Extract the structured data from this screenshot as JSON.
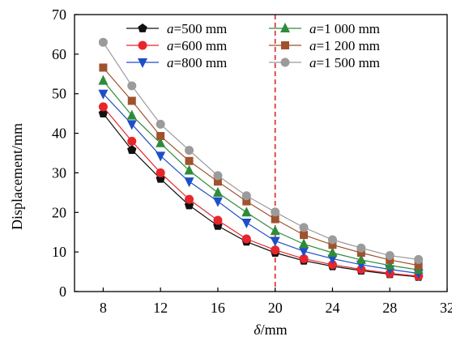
{
  "chart_data": {
    "type": "line",
    "xlabel_symbol": "δ",
    "xlabel_unit": "/mm",
    "ylabel": "Displacement/mm",
    "xlim": [
      6,
      32
    ],
    "ylim": [
      0,
      70
    ],
    "xticks": [
      8,
      12,
      16,
      20,
      24,
      28,
      32
    ],
    "yticks": [
      0,
      10,
      20,
      30,
      40,
      50,
      60,
      70
    ],
    "x": [
      8,
      10,
      12,
      14,
      16,
      18,
      20,
      22,
      24,
      26,
      28,
      30
    ],
    "reference_line_x": 20,
    "reference_line_color": "#d62728",
    "legend_position": "top-right",
    "series": [
      {
        "name": "500 mm",
        "param": "a=",
        "legend": "a=500 mm",
        "marker": "pentagon",
        "color": "#111111",
        "values": [
          45.0,
          35.8,
          28.5,
          21.8,
          16.6,
          12.6,
          9.8,
          7.8,
          6.4,
          5.3,
          4.4,
          3.7
        ]
      },
      {
        "name": "600 mm",
        "param": "a=",
        "legend": "a=600 mm",
        "marker": "circle",
        "color": "#e8252b",
        "values": [
          46.7,
          38.0,
          30.0,
          23.3,
          18.0,
          13.3,
          10.5,
          8.3,
          6.8,
          5.6,
          4.6,
          3.9
        ]
      },
      {
        "name": "800 mm",
        "param": "a=",
        "legend": "a=800 mm",
        "marker": "triangle-down",
        "color": "#1e4fc8",
        "values": [
          50.0,
          42.3,
          34.3,
          27.8,
          22.8,
          17.4,
          12.8,
          10.2,
          8.3,
          6.8,
          5.6,
          4.6
        ]
      },
      {
        "name": "1 000 mm",
        "param": "a=",
        "legend": "a=1 000 mm",
        "marker": "triangle-up",
        "color": "#2e8b3a",
        "values": [
          53.3,
          44.5,
          37.5,
          30.6,
          25.0,
          20.0,
          15.3,
          12.0,
          9.8,
          8.0,
          6.6,
          5.5
        ]
      },
      {
        "name": "1 200 mm",
        "param": "a=",
        "legend": "a=1 200 mm",
        "marker": "square",
        "color": "#a0522d",
        "values": [
          56.6,
          48.2,
          39.3,
          33.0,
          27.8,
          22.8,
          18.3,
          14.3,
          11.8,
          9.8,
          8.0,
          6.6
        ]
      },
      {
        "name": "1 500 mm",
        "param": "a=",
        "legend": "a=1 500 mm",
        "marker": "circle",
        "color": "#9b9b9b",
        "values": [
          63.0,
          52.0,
          42.3,
          35.7,
          29.3,
          24.2,
          20.1,
          16.2,
          13.1,
          11.0,
          9.1,
          8.1
        ]
      }
    ]
  }
}
